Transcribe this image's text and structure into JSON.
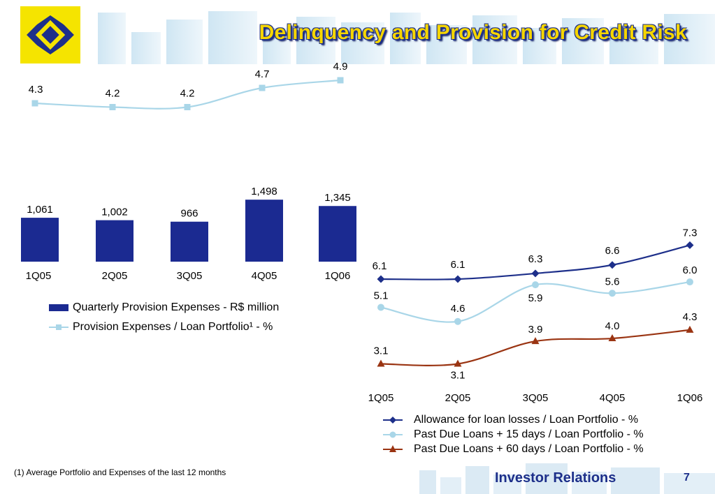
{
  "title": "Delinquency and Provision for Credit Risk",
  "footer": {
    "label": "Investor Relations",
    "page_number": "7"
  },
  "footnote": "(1) Average Portfolio and Expenses of the last 12 months",
  "colors": {
    "brand_blue": "#1d2f8a",
    "brand_yellow": "#f5d500",
    "bar_blue": "#1b2a91",
    "light_blue": "#a9d6e8",
    "brown": "#9a3412",
    "header_pale": "#dfeef7"
  },
  "chart_data": [
    {
      "type": "bar",
      "categories": [
        "1Q05",
        "2Q05",
        "3Q05",
        "4Q05",
        "1Q06"
      ],
      "series": [
        {
          "name": "Quarterly Provision Expenses - R$ million",
          "values": [
            1061,
            1002,
            966,
            1498,
            1345
          ],
          "labels": [
            "1,061",
            "1,002",
            "966",
            "1,498",
            "1,345"
          ],
          "type": "bar",
          "color": "#1b2a91"
        },
        {
          "name": "Provision Expenses / Loan Portfolio¹ - %",
          "values": [
            4.3,
            4.2,
            4.2,
            4.7,
            4.9
          ],
          "labels": [
            "4.3",
            "4.2",
            "4.2",
            "4.7",
            "4.9"
          ],
          "type": "line",
          "color": "#a9d6e8",
          "marker": "square"
        }
      ],
      "legend_position": "bottom"
    },
    {
      "type": "line",
      "categories": [
        "1Q05",
        "2Q05",
        "3Q05",
        "4Q05",
        "1Q06"
      ],
      "series": [
        {
          "name": "Allowance for loan losses / Loan Portfolio - %",
          "values": [
            6.1,
            6.1,
            6.3,
            6.6,
            7.3
          ],
          "labels": [
            "6.1",
            "6.1",
            "6.3",
            "6.6",
            "7.3"
          ],
          "color": "#1d2f8a",
          "marker": "diamond"
        },
        {
          "name": "Past Due Loans + 15 days / Loan Portfolio - %",
          "values": [
            5.1,
            4.6,
            5.9,
            5.6,
            6.0
          ],
          "labels": [
            "5.1",
            "4.6",
            "5.9",
            "5.6",
            "6.0"
          ],
          "color": "#a9d6e8",
          "marker": "circle"
        },
        {
          "name": "Past Due Loans + 60 days / Loan Portfolio - %",
          "values": [
            3.1,
            3.1,
            3.9,
            4.0,
            4.3
          ],
          "labels": [
            "3.1",
            "3.1",
            "3.9",
            "4.0",
            "4.3"
          ],
          "color": "#9a3412",
          "marker": "triangle"
        }
      ],
      "legend_position": "bottom"
    }
  ]
}
